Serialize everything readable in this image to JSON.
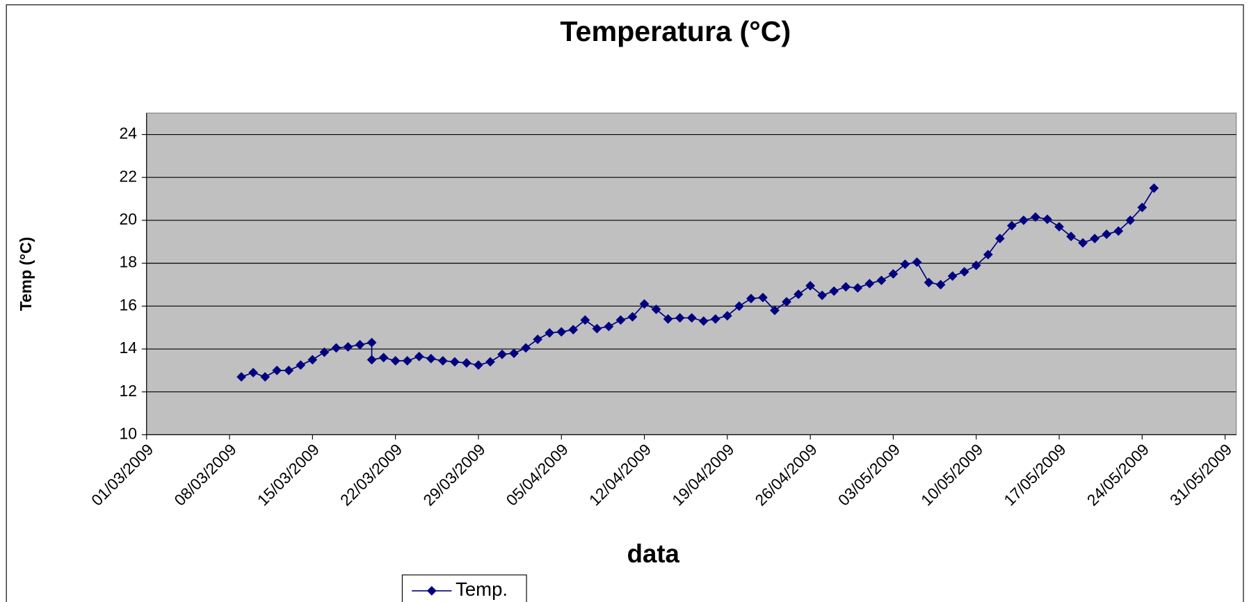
{
  "chart_data": {
    "type": "line",
    "title": "Temperatura (°C)",
    "x_label": "data",
    "y_label": "Temp (°C)",
    "x": [
      "09/03/2009",
      "10/03/2009",
      "11/03/2009",
      "12/03/2009",
      "13/03/2009",
      "14/03/2009",
      "15/03/2009",
      "16/03/2009",
      "17/03/2009",
      "18/03/2009",
      "19/03/2009",
      "20/03/2009",
      "20/03/2009",
      "21/03/2009",
      "22/03/2009",
      "23/03/2009",
      "24/03/2009",
      "25/03/2009",
      "26/03/2009",
      "27/03/2009",
      "28/03/2009",
      "29/03/2009",
      "30/03/2009",
      "31/03/2009",
      "01/04/2009",
      "02/04/2009",
      "03/04/2009",
      "04/04/2009",
      "05/04/2009",
      "06/04/2009",
      "07/04/2009",
      "08/04/2009",
      "09/04/2009",
      "10/04/2009",
      "11/04/2009",
      "12/04/2009",
      "13/04/2009",
      "14/04/2009",
      "15/04/2009",
      "16/04/2009",
      "17/04/2009",
      "18/04/2009",
      "19/04/2009",
      "20/04/2009",
      "21/04/2009",
      "22/04/2009",
      "23/04/2009",
      "24/04/2009",
      "25/04/2009",
      "26/04/2009",
      "27/04/2009",
      "28/04/2009",
      "29/04/2009",
      "30/04/2009",
      "01/05/2009",
      "02/05/2009",
      "03/05/2009",
      "04/05/2009",
      "05/05/2009",
      "06/05/2009",
      "07/05/2009",
      "08/05/2009",
      "09/05/2009",
      "10/05/2009",
      "11/05/2009",
      "12/05/2009",
      "13/05/2009",
      "14/05/2009",
      "15/05/2009",
      "16/05/2009",
      "17/05/2009",
      "18/05/2009",
      "19/05/2009",
      "20/05/2009",
      "21/05/2009",
      "22/05/2009",
      "23/05/2009",
      "24/05/2009",
      "25/05/2009"
    ],
    "series": [
      {
        "name": "Temp.",
        "color": "#000080",
        "values": [
          12.7,
          12.9,
          12.7,
          13.0,
          13.0,
          13.25,
          13.5,
          13.85,
          14.05,
          14.1,
          14.2,
          14.3,
          13.5,
          13.6,
          13.45,
          13.45,
          13.65,
          13.55,
          13.45,
          13.4,
          13.35,
          13.25,
          13.4,
          13.75,
          13.8,
          14.05,
          14.45,
          14.75,
          14.8,
          14.9,
          15.35,
          14.95,
          15.05,
          15.35,
          15.5,
          16.1,
          15.85,
          15.4,
          15.45,
          15.45,
          15.3,
          15.4,
          15.55,
          16.0,
          16.35,
          16.4,
          15.8,
          16.2,
          16.55,
          16.95,
          16.5,
          16.7,
          16.9,
          16.85,
          17.05,
          17.2,
          17.5,
          17.95,
          18.05,
          17.1,
          17.0,
          17.4,
          17.6,
          17.9,
          18.4,
          19.15,
          19.75,
          20.0,
          20.15,
          20.05,
          19.7,
          19.25,
          18.95,
          19.15,
          19.35,
          19.5,
          20.0,
          20.6,
          21.5
        ]
      }
    ],
    "xlim": [
      "01/03/2009",
      "31/05/2009"
    ],
    "xticks": [
      "01/03/2009",
      "08/03/2009",
      "15/03/2009",
      "22/03/2009",
      "29/03/2009",
      "05/04/2009",
      "12/04/2009",
      "19/04/2009",
      "26/04/2009",
      "03/05/2009",
      "10/05/2009",
      "17/05/2009",
      "24/05/2009",
      "31/05/2009"
    ],
    "ylim": [
      10,
      25
    ],
    "yticks": [
      10,
      12,
      14,
      16,
      18,
      20,
      22,
      24
    ],
    "grid": true,
    "plot_background": "#c0c0c0",
    "legend": "bottom"
  }
}
